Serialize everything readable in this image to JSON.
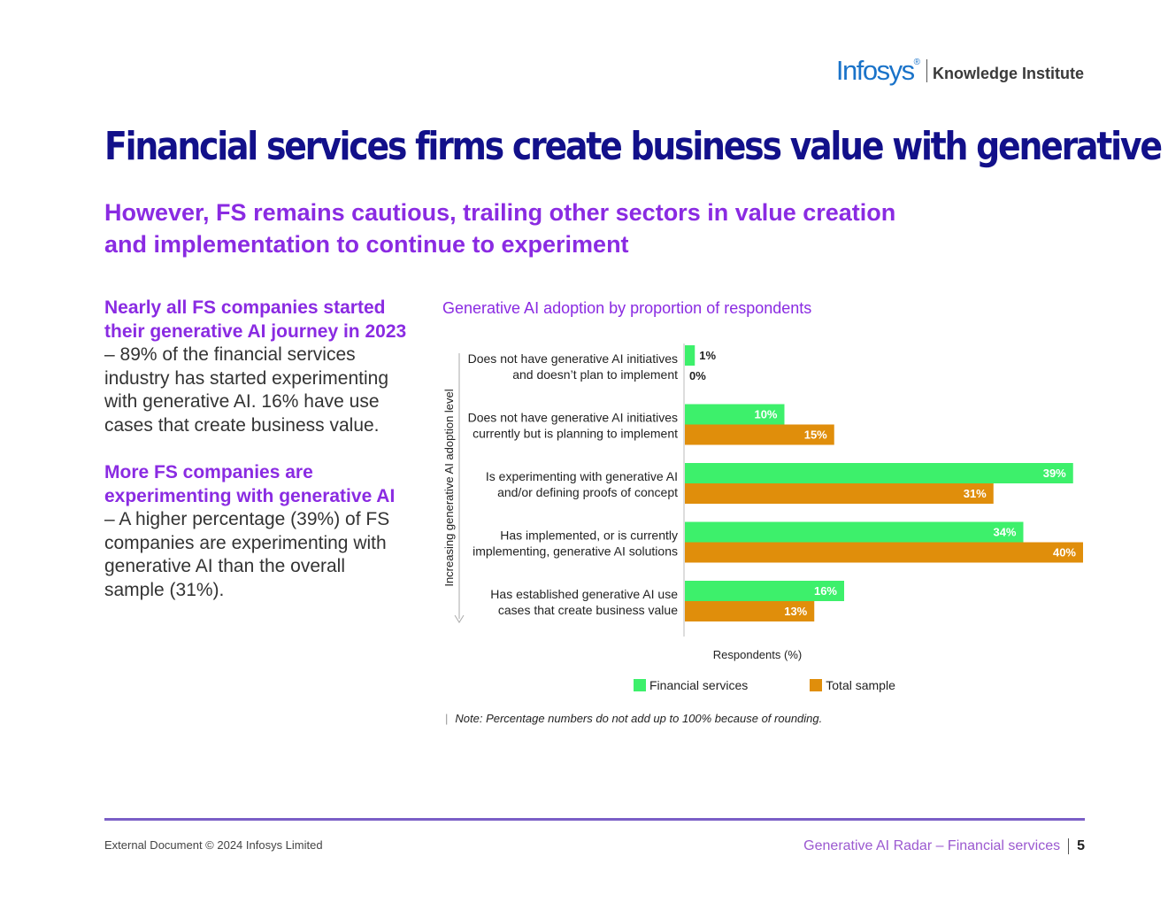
{
  "header": {
    "brand": "Infosys",
    "brand_mark": "®",
    "division": "Knowledge Institute"
  },
  "title": "Financial services firms create business value with generative AI",
  "subtitle_line1": "However, FS remains cautious, trailing other sectors in value creation",
  "subtitle_line2": "and implementation to continue to experiment",
  "left": {
    "p1_highlight": "Nearly all FS companies started their generative AI journey in 2023",
    "p1_body": " – 89% of the financial services industry has started experimenting with generative AI. 16% have use cases that create business value.",
    "p2_highlight": "More FS companies are experimenting with generative AI",
    "p2_body": " – A higher percentage (39%) of FS companies are experimenting with generative AI than the overall sample (31%)."
  },
  "chart_title": "Generative AI adoption by proportion of respondents",
  "chart_data": {
    "type": "bar",
    "orientation": "horizontal",
    "categories": [
      [
        "Does not have generative AI initiatives",
        "and doesn’t plan to implement"
      ],
      [
        "Does not have generative AI initiatives",
        "currently but is planning to implement"
      ],
      [
        "Is experimenting with generative AI",
        "and/or defining proofs of concept"
      ],
      [
        "Has implemented, or is currently",
        "implementing, generative AI solutions"
      ],
      [
        "Has established generative AI use",
        "cases that create business value"
      ]
    ],
    "series": [
      {
        "name": "Financial services",
        "color": "#3df06b",
        "values": [
          1,
          10,
          39,
          34,
          16
        ]
      },
      {
        "name": "Total sample",
        "color": "#e08e0b",
        "values": [
          0,
          15,
          31,
          40,
          13
        ]
      }
    ],
    "value_suffix": "%",
    "xlabel": "Respondents (%)",
    "ylabel": "Increasing generative AI adoption level",
    "xlim": [
      0,
      40
    ],
    "legend": "bottom",
    "grid": false
  },
  "note": "Note: Percentage numbers do not add up to 100% because of rounding.",
  "footer": {
    "left": "External Document © 2024 Infosys Limited",
    "right": "Generative AI Radar – Financial services",
    "page": "5"
  }
}
